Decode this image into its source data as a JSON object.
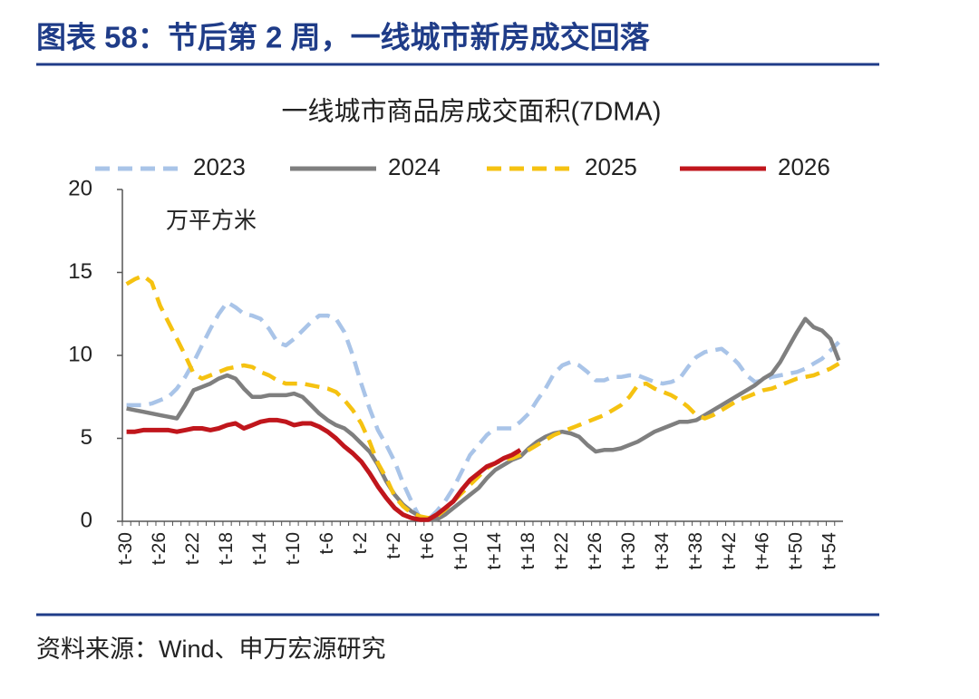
{
  "header": {
    "title": "图表 58：节后第 2 周，一线城市新房成交回落"
  },
  "chart_data": {
    "type": "line",
    "title": "一线城市商品房成交面积(7DMA)",
    "ylabel": "万平方米",
    "legend": "top",
    "categories": [
      "t-30",
      null,
      null,
      null,
      "t-26",
      null,
      null,
      null,
      "t-22",
      null,
      null,
      null,
      "t-18",
      null,
      null,
      null,
      "t-14",
      null,
      null,
      null,
      "t-10",
      null,
      null,
      null,
      "t-6",
      null,
      null,
      null,
      "t-2",
      null,
      null,
      null,
      "t+2",
      null,
      null,
      null,
      "t+6",
      null,
      null,
      null,
      "t+10",
      null,
      null,
      null,
      "t+14",
      null,
      null,
      null,
      "t+18",
      null,
      null,
      null,
      "t+22",
      null,
      null,
      null,
      "t+26",
      null,
      null,
      null,
      "t+30",
      null,
      null,
      null,
      "t+34",
      null,
      null,
      null,
      "t+38",
      null,
      null,
      null,
      "t+42",
      null,
      null,
      null,
      "t+46",
      null,
      null,
      null,
      "t+50",
      null,
      null,
      null,
      "t+54",
      null
    ],
    "ylim": [
      0,
      20
    ],
    "yticks": [
      0,
      5,
      10,
      15,
      20
    ],
    "series": [
      {
        "name": "2023",
        "color": "#a9c4e8",
        "dashed": true,
        "values": [
          7.0,
          7.0,
          7.0,
          7.1,
          7.3,
          7.5,
          8.0,
          8.7,
          9.6,
          10.6,
          11.6,
          12.5,
          13.2,
          12.9,
          12.5,
          12.4,
          12.2,
          11.6,
          10.8,
          10.6,
          11.0,
          11.5,
          12.0,
          12.4,
          12.4,
          12.2,
          11.4,
          10.0,
          8.3,
          6.8,
          5.5,
          4.6,
          3.6,
          2.3,
          1.2,
          0.2,
          0.1,
          0.6,
          1.2,
          2.0,
          3.0,
          4.0,
          4.6,
          5.2,
          5.6,
          5.6,
          5.6,
          6.0,
          6.5,
          7.3,
          8.0,
          8.9,
          9.4,
          9.6,
          9.4,
          9.0,
          8.5,
          8.5,
          8.7,
          8.7,
          8.8,
          8.8,
          8.6,
          8.4,
          8.3,
          8.4,
          8.6,
          9.3,
          9.9,
          10.2,
          10.3,
          10.4,
          10.0,
          9.5,
          8.8,
          8.4,
          8.5,
          8.7,
          8.8,
          8.9,
          9.0,
          9.2,
          9.5,
          9.8,
          10.3,
          10.8
        ]
      },
      {
        "name": "2024",
        "color": "#7f7f7f",
        "dashed": false,
        "values": [
          6.8,
          6.7,
          6.6,
          6.5,
          6.4,
          6.3,
          6.2,
          7.0,
          7.9,
          8.1,
          8.3,
          8.6,
          8.8,
          8.6,
          8.0,
          7.5,
          7.5,
          7.6,
          7.6,
          7.6,
          7.7,
          7.5,
          7.0,
          6.5,
          6.1,
          5.8,
          5.6,
          5.2,
          4.7,
          4.2,
          3.4,
          2.4,
          1.6,
          1.0,
          0.6,
          0.3,
          0.1,
          0.1,
          0.4,
          0.8,
          1.2,
          1.6,
          2.0,
          2.6,
          3.1,
          3.4,
          3.7,
          3.9,
          4.4,
          4.8,
          5.1,
          5.3,
          5.4,
          5.3,
          5.1,
          4.6,
          4.2,
          4.3,
          4.3,
          4.4,
          4.6,
          4.8,
          5.1,
          5.4,
          5.6,
          5.8,
          6.0,
          6.0,
          6.1,
          6.4,
          6.7,
          7.0,
          7.3,
          7.6,
          7.9,
          8.2,
          8.6,
          8.9,
          9.6,
          10.5,
          11.4,
          12.2,
          11.7,
          11.5,
          11.0,
          9.7
        ]
      },
      {
        "name": "2025",
        "color": "#f5c211",
        "dashed": true,
        "values": [
          14.3,
          14.6,
          14.8,
          14.4,
          13.0,
          12.0,
          11.0,
          10.0,
          8.9,
          8.6,
          8.8,
          9.0,
          9.2,
          9.3,
          9.4,
          9.3,
          9.0,
          8.8,
          8.5,
          8.3,
          8.3,
          8.3,
          8.2,
          8.1,
          8.0,
          7.8,
          7.3,
          6.7,
          5.9,
          4.8,
          3.5,
          2.6,
          1.5,
          0.9,
          0.5,
          0.3,
          0.2,
          0.3,
          0.7,
          1.2,
          1.7,
          2.2,
          2.7,
          3.2,
          3.5,
          3.7,
          3.8,
          4.0,
          4.3,
          4.6,
          4.9,
          5.2,
          5.4,
          5.6,
          5.8,
          6.0,
          6.2,
          6.4,
          6.7,
          7.0,
          7.5,
          8.2,
          8.3,
          8.0,
          7.8,
          7.6,
          7.3,
          6.9,
          6.4,
          6.2,
          6.4,
          6.7,
          7.0,
          7.3,
          7.5,
          7.7,
          7.9,
          8.0,
          8.2,
          8.4,
          8.6,
          8.7,
          8.8,
          9.0,
          9.2,
          9.5
        ]
      },
      {
        "name": "2026",
        "color": "#c0161c",
        "dashed": false,
        "values": [
          5.4,
          5.4,
          5.5,
          5.5,
          5.5,
          5.5,
          5.4,
          5.5,
          5.6,
          5.6,
          5.5,
          5.6,
          5.8,
          5.9,
          5.6,
          5.8,
          6.0,
          6.1,
          6.1,
          6.0,
          5.8,
          5.9,
          5.9,
          5.7,
          5.4,
          5.0,
          4.5,
          4.1,
          3.6,
          2.9,
          2.1,
          1.4,
          0.8,
          0.4,
          0.2,
          0.1,
          0.1,
          0.4,
          0.8,
          1.2,
          1.9,
          2.5,
          2.9,
          3.3,
          3.5,
          3.8,
          4.0,
          4.3,
          null,
          null,
          null,
          null,
          null,
          null,
          null,
          null,
          null,
          null,
          null,
          null,
          null,
          null,
          null,
          null,
          null,
          null,
          null,
          null,
          null,
          null,
          null,
          null,
          null,
          null,
          null,
          null,
          null,
          null,
          null,
          null,
          null,
          null,
          null,
          null,
          null,
          null
        ]
      }
    ]
  },
  "source": "资料来源：Wind、申万宏源研究"
}
